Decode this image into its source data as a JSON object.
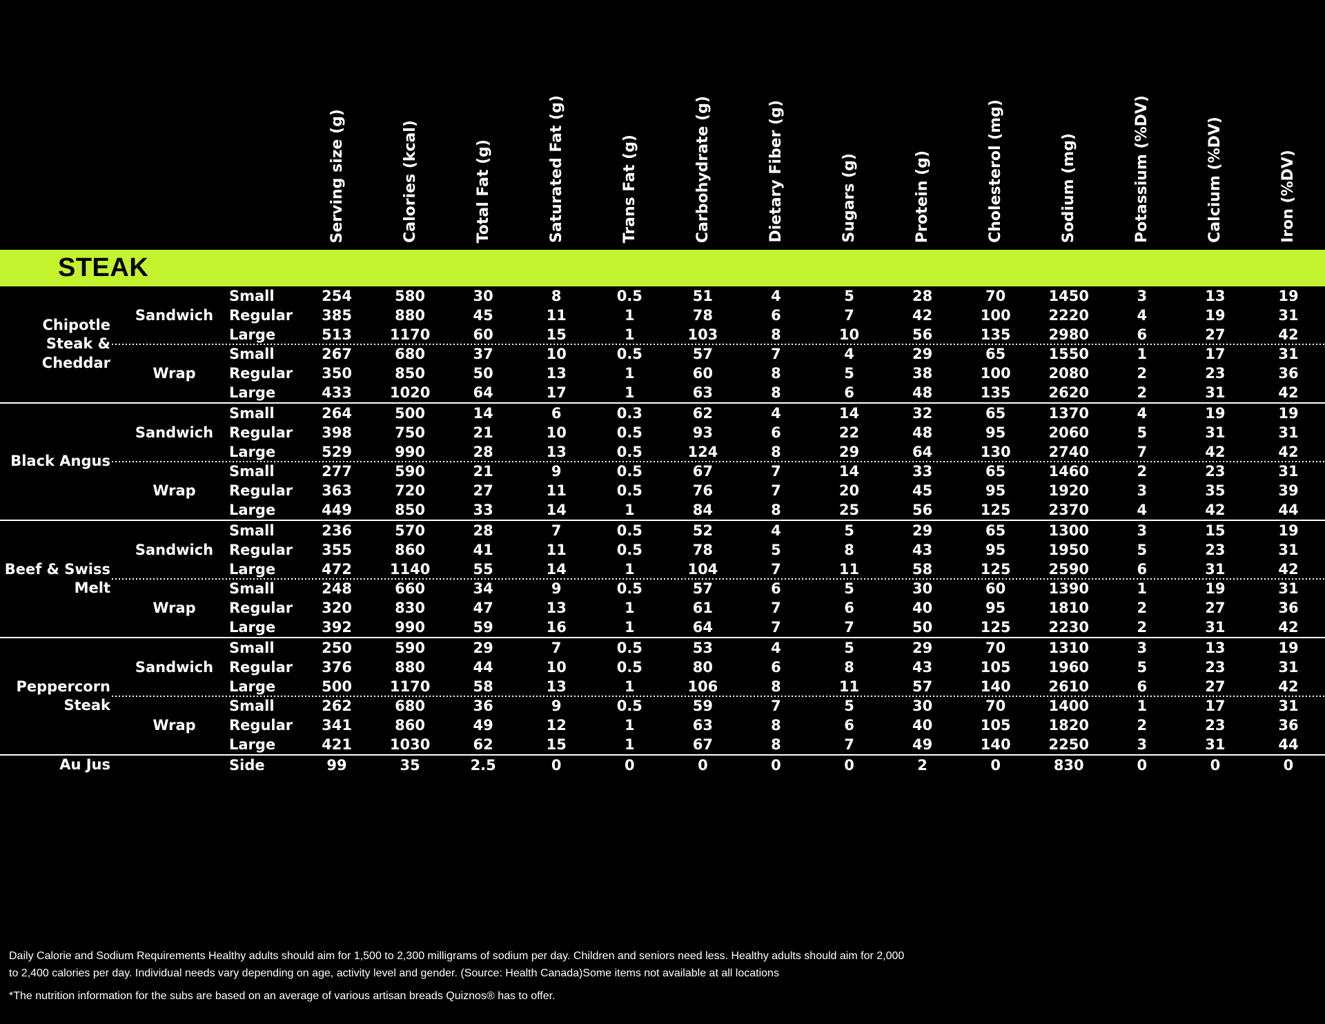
{
  "colors": {
    "background": "#000000",
    "text": "#ffffff",
    "accent": "#c3f22e"
  },
  "section": {
    "title": "STEAK",
    "accent_color": "#c3f22e"
  },
  "table": {
    "columns": [
      "Serving size (g)",
      "Calories (kcal)",
      "Total Fat (g)",
      "Saturated Fat (g)",
      "Trans Fat (g)",
      "Carbohydrate (g)",
      "Dietary Fiber (g)",
      "Sugars (g)",
      "Protein (g)",
      "Cholesterol (mg)",
      "Sodium (mg)",
      "Potassium (%DV)",
      "Calcium (%DV)",
      "Iron (%DV)"
    ],
    "groups": [
      {
        "item": "Chipotle Steak & Cheddar",
        "subgroups": [
          {
            "type": "Sandwich",
            "rows": [
              {
                "size": "Small",
                "values": [
                  "254",
                  "580",
                  "30",
                  "8",
                  "0.5",
                  "51",
                  "4",
                  "5",
                  "28",
                  "70",
                  "1450",
                  "3",
                  "13",
                  "19"
                ]
              },
              {
                "size": "Regular",
                "values": [
                  "385",
                  "880",
                  "45",
                  "11",
                  "1",
                  "78",
                  "6",
                  "7",
                  "42",
                  "100",
                  "2220",
                  "4",
                  "19",
                  "31"
                ]
              },
              {
                "size": "Large",
                "values": [
                  "513",
                  "1170",
                  "60",
                  "15",
                  "1",
                  "103",
                  "8",
                  "10",
                  "56",
                  "135",
                  "2980",
                  "6",
                  "27",
                  "42"
                ]
              }
            ]
          },
          {
            "type": "Wrap",
            "rows": [
              {
                "size": "Small",
                "values": [
                  "267",
                  "680",
                  "37",
                  "10",
                  "0.5",
                  "57",
                  "7",
                  "4",
                  "29",
                  "65",
                  "1550",
                  "1",
                  "17",
                  "31"
                ]
              },
              {
                "size": "Regular",
                "values": [
                  "350",
                  "850",
                  "50",
                  "13",
                  "1",
                  "60",
                  "8",
                  "5",
                  "38",
                  "100",
                  "2080",
                  "2",
                  "23",
                  "36"
                ]
              },
              {
                "size": "Large",
                "values": [
                  "433",
                  "1020",
                  "64",
                  "17",
                  "1",
                  "63",
                  "8",
                  "6",
                  "48",
                  "135",
                  "2620",
                  "2",
                  "31",
                  "42"
                ]
              }
            ]
          }
        ]
      },
      {
        "item": "Black Angus",
        "subgroups": [
          {
            "type": "Sandwich",
            "rows": [
              {
                "size": "Small",
                "values": [
                  "264",
                  "500",
                  "14",
                  "6",
                  "0.3",
                  "62",
                  "4",
                  "14",
                  "32",
                  "65",
                  "1370",
                  "4",
                  "19",
                  "19"
                ]
              },
              {
                "size": "Regular",
                "values": [
                  "398",
                  "750",
                  "21",
                  "10",
                  "0.5",
                  "93",
                  "6",
                  "22",
                  "48",
                  "95",
                  "2060",
                  "5",
                  "31",
                  "31"
                ]
              },
              {
                "size": "Large",
                "values": [
                  "529",
                  "990",
                  "28",
                  "13",
                  "0.5",
                  "124",
                  "8",
                  "29",
                  "64",
                  "130",
                  "2740",
                  "7",
                  "42",
                  "42"
                ]
              }
            ]
          },
          {
            "type": "Wrap",
            "rows": [
              {
                "size": "Small",
                "values": [
                  "277",
                  "590",
                  "21",
                  "9",
                  "0.5",
                  "67",
                  "7",
                  "14",
                  "33",
                  "65",
                  "1460",
                  "2",
                  "23",
                  "31"
                ]
              },
              {
                "size": "Regular",
                "values": [
                  "363",
                  "720",
                  "27",
                  "11",
                  "0.5",
                  "76",
                  "7",
                  "20",
                  "45",
                  "95",
                  "1920",
                  "3",
                  "35",
                  "39"
                ]
              },
              {
                "size": "Large",
                "values": [
                  "449",
                  "850",
                  "33",
                  "14",
                  "1",
                  "84",
                  "8",
                  "25",
                  "56",
                  "125",
                  "2370",
                  "4",
                  "42",
                  "44"
                ]
              }
            ]
          }
        ]
      },
      {
        "item": "Beef & Swiss Melt",
        "subgroups": [
          {
            "type": "Sandwich",
            "rows": [
              {
                "size": "Small",
                "values": [
                  "236",
                  "570",
                  "28",
                  "7",
                  "0.5",
                  "52",
                  "4",
                  "5",
                  "29",
                  "65",
                  "1300",
                  "3",
                  "15",
                  "19"
                ]
              },
              {
                "size": "Regular",
                "values": [
                  "355",
                  "860",
                  "41",
                  "11",
                  "0.5",
                  "78",
                  "5",
                  "8",
                  "43",
                  "95",
                  "1950",
                  "5",
                  "23",
                  "31"
                ]
              },
              {
                "size": "Large",
                "values": [
                  "472",
                  "1140",
                  "55",
                  "14",
                  "1",
                  "104",
                  "7",
                  "11",
                  "58",
                  "125",
                  "2590",
                  "6",
                  "31",
                  "42"
                ]
              }
            ]
          },
          {
            "type": "Wrap",
            "rows": [
              {
                "size": "Small",
                "values": [
                  "248",
                  "660",
                  "34",
                  "9",
                  "0.5",
                  "57",
                  "6",
                  "5",
                  "30",
                  "60",
                  "1390",
                  "1",
                  "19",
                  "31"
                ]
              },
              {
                "size": "Regular",
                "values": [
                  "320",
                  "830",
                  "47",
                  "13",
                  "1",
                  "61",
                  "7",
                  "6",
                  "40",
                  "95",
                  "1810",
                  "2",
                  "27",
                  "36"
                ]
              },
              {
                "size": "Large",
                "values": [
                  "392",
                  "990",
                  "59",
                  "16",
                  "1",
                  "64",
                  "7",
                  "7",
                  "50",
                  "125",
                  "2230",
                  "2",
                  "31",
                  "42"
                ]
              }
            ]
          }
        ]
      },
      {
        "item": "Peppercorn Steak",
        "subgroups": [
          {
            "type": "Sandwich",
            "rows": [
              {
                "size": "Small",
                "values": [
                  "250",
                  "590",
                  "29",
                  "7",
                  "0.5",
                  "53",
                  "4",
                  "5",
                  "29",
                  "70",
                  "1310",
                  "3",
                  "13",
                  "19"
                ]
              },
              {
                "size": "Regular",
                "values": [
                  "376",
                  "880",
                  "44",
                  "10",
                  "0.5",
                  "80",
                  "6",
                  "8",
                  "43",
                  "105",
                  "1960",
                  "5",
                  "23",
                  "31"
                ]
              },
              {
                "size": "Large",
                "values": [
                  "500",
                  "1170",
                  "58",
                  "13",
                  "1",
                  "106",
                  "8",
                  "11",
                  "57",
                  "140",
                  "2610",
                  "6",
                  "27",
                  "42"
                ]
              }
            ]
          },
          {
            "type": "Wrap",
            "rows": [
              {
                "size": "Small",
                "values": [
                  "262",
                  "680",
                  "36",
                  "9",
                  "0.5",
                  "59",
                  "7",
                  "5",
                  "30",
                  "70",
                  "1400",
                  "1",
                  "17",
                  "31"
                ]
              },
              {
                "size": "Regular",
                "values": [
                  "341",
                  "860",
                  "49",
                  "12",
                  "1",
                  "63",
                  "8",
                  "6",
                  "40",
                  "105",
                  "1820",
                  "2",
                  "23",
                  "36"
                ]
              },
              {
                "size": "Large",
                "values": [
                  "421",
                  "1030",
                  "62",
                  "15",
                  "1",
                  "67",
                  "8",
                  "7",
                  "49",
                  "140",
                  "2250",
                  "3",
                  "31",
                  "44"
                ]
              }
            ]
          }
        ]
      },
      {
        "item": "Au Jus",
        "subgroups": [
          {
            "type": "",
            "rows": [
              {
                "size": "Side",
                "values": [
                  "99",
                  "35",
                  "2.5",
                  "0",
                  "0",
                  "0",
                  "0",
                  "0",
                  "2",
                  "0",
                  "830",
                  "0",
                  "0",
                  "0"
                ]
              }
            ]
          }
        ]
      }
    ]
  },
  "footer": {
    "disclaimer": "Daily Calorie and Sodium Requirements Healthy adults should aim for 1,500 to 2,300 milligrams of sodium per day. Children and seniors need less. Healthy adults should aim for 2,000 to 2,400 calories per day. Individual needs vary depending on age, activity level and gender. (Source: Health Canada)Some items not available at all locations",
    "footnote": "*The nutrition information for the subs are based on an average of various artisan breads Quiznos® has to offer."
  }
}
